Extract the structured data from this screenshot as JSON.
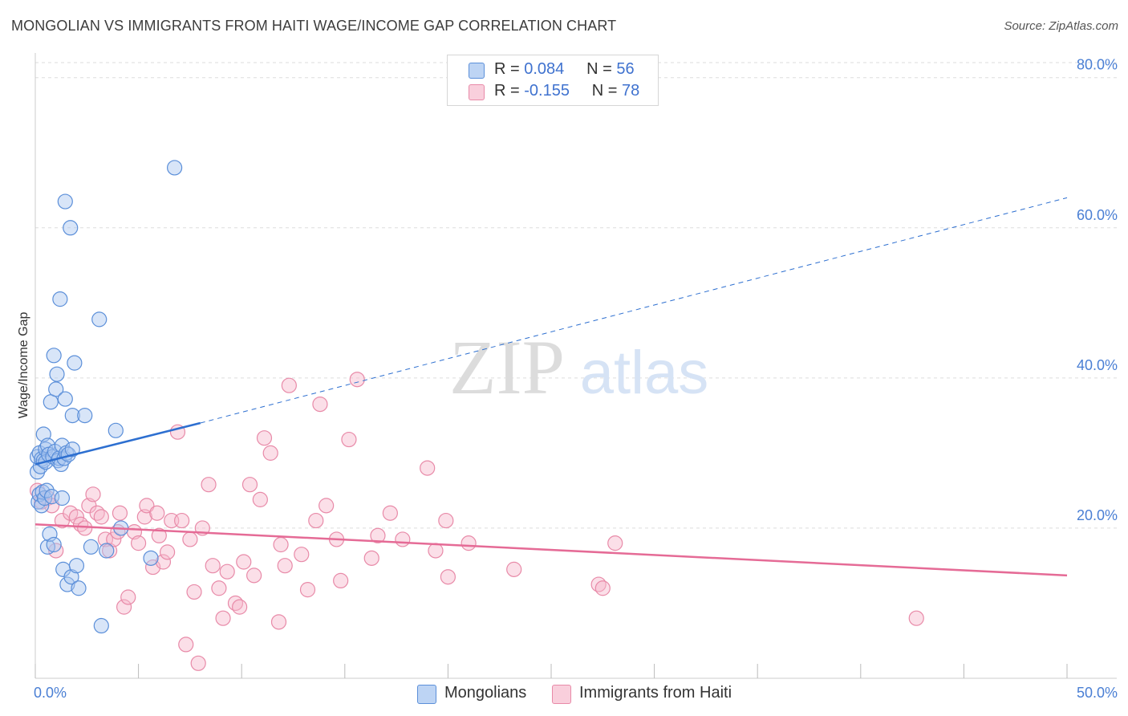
{
  "header": {
    "title": "MONGOLIAN VS IMMIGRANTS FROM HAITI WAGE/INCOME GAP CORRELATION CHART",
    "source": "Source: ZipAtlas.com"
  },
  "watermark": {
    "zip": "ZIP",
    "atlas": "atlas"
  },
  "legend": {
    "rows": [
      {
        "r_label": "R = ",
        "r_value": "0.084",
        "n_label": "N = ",
        "n_value": "56"
      },
      {
        "r_label": "R = ",
        "r_value": "-0.155",
        "n_label": "N = ",
        "n_value": "78"
      }
    ]
  },
  "bottom_legend": {
    "series_a": "Mongolians",
    "series_b": "Immigrants from Haiti"
  },
  "colors": {
    "blue_fill": "#a8c6f0",
    "blue_stroke": "#5b8fd9",
    "blue_line": "#2d6fd0",
    "pink_fill": "#f6b9cb",
    "pink_stroke": "#e88aa8",
    "pink_line": "#e56b96",
    "tick_text": "#4a7fd4",
    "grid": "#dddddd"
  },
  "chart_data": {
    "type": "scatter",
    "title": "MONGOLIAN VS IMMIGRANTS FROM HAITI WAGE/INCOME GAP CORRELATION CHART",
    "xlabel": "",
    "ylabel": "Wage/Income Gap",
    "xlim": [
      0,
      50
    ],
    "ylim": [
      0,
      82
    ],
    "x_tick_labels": [
      {
        "value": 0,
        "label": "0.0%"
      },
      {
        "value": 50,
        "label": "50.0%"
      }
    ],
    "y_tick_labels": [
      {
        "value": 20,
        "label": "20.0%"
      },
      {
        "value": 40,
        "label": "40.0%"
      },
      {
        "value": 60,
        "label": "60.0%"
      },
      {
        "value": 80,
        "label": "80.0%"
      }
    ],
    "series": [
      {
        "name": "Mongolians",
        "r": 0.084,
        "n": 56,
        "trend_solid": [
          [
            0.0,
            28.5
          ],
          [
            8.0,
            34.0
          ]
        ],
        "trend_dashed": [
          [
            8.0,
            34.0
          ],
          [
            50.0,
            64.0
          ]
        ],
        "points": [
          [
            0.1,
            29.5
          ],
          [
            0.1,
            27.5
          ],
          [
            0.15,
            23.5
          ],
          [
            0.2,
            30.0
          ],
          [
            0.2,
            24.5
          ],
          [
            0.25,
            28.2
          ],
          [
            0.3,
            29.2
          ],
          [
            0.3,
            23.0
          ],
          [
            0.35,
            24.8
          ],
          [
            0.4,
            29.0
          ],
          [
            0.4,
            32.5
          ],
          [
            0.45,
            24.0
          ],
          [
            0.5,
            30.5
          ],
          [
            0.5,
            28.8
          ],
          [
            0.55,
            25.0
          ],
          [
            0.6,
            31.0
          ],
          [
            0.6,
            17.5
          ],
          [
            0.65,
            29.8
          ],
          [
            0.7,
            19.2
          ],
          [
            0.75,
            36.8
          ],
          [
            0.8,
            24.2
          ],
          [
            0.85,
            29.5
          ],
          [
            0.9,
            17.8
          ],
          [
            0.9,
            43.0
          ],
          [
            0.95,
            30.2
          ],
          [
            1.0,
            38.5
          ],
          [
            1.05,
            40.5
          ],
          [
            1.1,
            29.0
          ],
          [
            1.15,
            29.3
          ],
          [
            1.2,
            50.5
          ],
          [
            1.25,
            28.5
          ],
          [
            1.3,
            24.0
          ],
          [
            1.3,
            31.0
          ],
          [
            1.35,
            14.5
          ],
          [
            1.4,
            29.3
          ],
          [
            1.45,
            37.2
          ],
          [
            1.45,
            63.5
          ],
          [
            1.5,
            30.0
          ],
          [
            1.55,
            12.5
          ],
          [
            1.6,
            29.8
          ],
          [
            1.7,
            60.0
          ],
          [
            1.75,
            13.5
          ],
          [
            1.8,
            30.5
          ],
          [
            1.8,
            35.0
          ],
          [
            1.9,
            42.0
          ],
          [
            2.0,
            15.0
          ],
          [
            2.1,
            12.0
          ],
          [
            2.4,
            35.0
          ],
          [
            2.7,
            17.5
          ],
          [
            3.1,
            47.8
          ],
          [
            3.2,
            7.0
          ],
          [
            3.45,
            17.0
          ],
          [
            3.9,
            33.0
          ],
          [
            4.15,
            20.0
          ],
          [
            5.6,
            16.0
          ],
          [
            6.75,
            68.0
          ]
        ]
      },
      {
        "name": "Immigrants from Haiti",
        "r": -0.155,
        "n": 78,
        "trend_solid": [
          [
            0.0,
            20.5
          ],
          [
            50.0,
            13.7
          ]
        ],
        "points": [
          [
            0.1,
            25.0
          ],
          [
            0.3,
            23.5
          ],
          [
            0.6,
            24.0
          ],
          [
            0.8,
            23.0
          ],
          [
            1.0,
            17.0
          ],
          [
            1.3,
            21.0
          ],
          [
            1.7,
            22.0
          ],
          [
            2.0,
            21.5
          ],
          [
            2.2,
            20.5
          ],
          [
            2.4,
            20.0
          ],
          [
            2.6,
            23.0
          ],
          [
            2.8,
            24.5
          ],
          [
            3.0,
            22.0
          ],
          [
            3.2,
            21.5
          ],
          [
            3.4,
            18.5
          ],
          [
            3.6,
            17.0
          ],
          [
            3.8,
            18.5
          ],
          [
            4.0,
            19.5
          ],
          [
            4.1,
            22.0
          ],
          [
            4.3,
            9.5
          ],
          [
            4.5,
            10.8
          ],
          [
            4.8,
            19.5
          ],
          [
            5.0,
            18.0
          ],
          [
            5.3,
            21.5
          ],
          [
            5.4,
            23.0
          ],
          [
            5.7,
            14.8
          ],
          [
            5.9,
            22.0
          ],
          [
            6.0,
            19.0
          ],
          [
            6.2,
            15.5
          ],
          [
            6.4,
            16.8
          ],
          [
            6.6,
            21.0
          ],
          [
            6.9,
            32.8
          ],
          [
            7.1,
            21.0
          ],
          [
            7.3,
            4.5
          ],
          [
            7.5,
            18.5
          ],
          [
            7.7,
            11.5
          ],
          [
            7.9,
            2.0
          ],
          [
            8.1,
            20.0
          ],
          [
            8.4,
            25.8
          ],
          [
            8.6,
            15.0
          ],
          [
            8.9,
            12.0
          ],
          [
            9.1,
            8.0
          ],
          [
            9.3,
            14.2
          ],
          [
            9.7,
            10.0
          ],
          [
            9.9,
            9.5
          ],
          [
            10.1,
            15.5
          ],
          [
            10.4,
            25.8
          ],
          [
            10.6,
            13.7
          ],
          [
            10.9,
            23.8
          ],
          [
            11.1,
            32.0
          ],
          [
            11.4,
            30.0
          ],
          [
            11.8,
            7.5
          ],
          [
            11.9,
            17.8
          ],
          [
            12.1,
            15.0
          ],
          [
            12.3,
            39.0
          ],
          [
            12.9,
            16.5
          ],
          [
            13.2,
            11.8
          ],
          [
            13.6,
            21.0
          ],
          [
            13.8,
            36.5
          ],
          [
            14.1,
            23.0
          ],
          [
            14.6,
            18.5
          ],
          [
            14.8,
            13.0
          ],
          [
            15.2,
            31.8
          ],
          [
            15.6,
            39.8
          ],
          [
            16.3,
            16.0
          ],
          [
            16.6,
            19.0
          ],
          [
            17.2,
            22.0
          ],
          [
            17.8,
            18.5
          ],
          [
            19.0,
            28.0
          ],
          [
            19.4,
            17.0
          ],
          [
            19.9,
            21.0
          ],
          [
            20.0,
            13.5
          ],
          [
            21.0,
            18.0
          ],
          [
            23.2,
            14.5
          ],
          [
            27.3,
            12.5
          ],
          [
            27.5,
            12.0
          ],
          [
            28.1,
            18.0
          ],
          [
            42.7,
            8.0
          ]
        ]
      }
    ]
  }
}
